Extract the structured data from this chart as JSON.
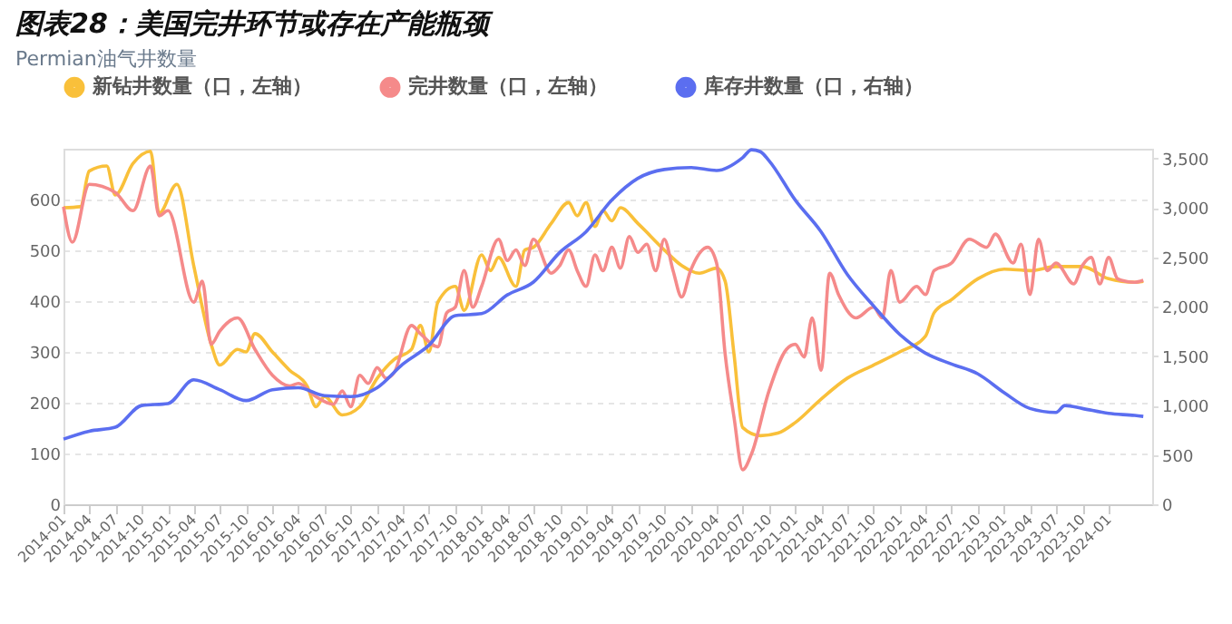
{
  "chart_data": {
    "type": "line",
    "title": "图表28：美国完井环节或存在产能瓶颈",
    "subtitle": "Permian油气井数量",
    "xlim": [
      "2014-01",
      "2024-06"
    ],
    "xticks": [
      "2014-01",
      "2014-04",
      "2014-07",
      "2014-10",
      "2015-01",
      "2015-04",
      "2015-07",
      "2015-10",
      "2016-01",
      "2016-04",
      "2016-07",
      "2016-10",
      "2017-01",
      "2017-04",
      "2017-07",
      "2017-10",
      "2018-01",
      "2018-04",
      "2018-07",
      "2018-10",
      "2019-01",
      "2019-04",
      "2019-07",
      "2019-10",
      "2020-01",
      "2020-04",
      "2020-07",
      "2020-10",
      "2021-01",
      "2021-04",
      "2021-07",
      "2021-10",
      "2022-01",
      "2022-04",
      "2022-07",
      "2022-10",
      "2023-01",
      "2023-04",
      "2023-07",
      "2023-10",
      "2024-01"
    ],
    "ylim": [
      0,
      700
    ],
    "yticks": [
      0,
      100,
      200,
      300,
      400,
      500,
      600
    ],
    "y2lim": [
      0,
      3600
    ],
    "y2ticks": [
      0,
      500,
      {
        "value": 1000,
        "label": "1,000"
      },
      {
        "value": 1500,
        "label": "1,500"
      },
      {
        "value": 2000,
        "label": "2,000"
      },
      {
        "value": 2500,
        "label": "2,500"
      },
      {
        "value": 3000,
        "label": "3,000"
      },
      {
        "value": 3500,
        "label": "3,500"
      }
    ],
    "grid": "y",
    "legend": "top left",
    "marker": "none",
    "line_style": "solid",
    "series": [
      {
        "name": "新钻井数量（口，左轴）",
        "color": "#f9c03a",
        "x": [
          "2014-01",
          "2014-03",
          "2014-04",
          "2014-06",
          "2014-07",
          "2014-09",
          "2014-11",
          "2014-12",
          "2015-02",
          "2015-04",
          "2015-06",
          "2015-07",
          "2015-09",
          "2015-10",
          "2015-11",
          "2016-01",
          "2016-03",
          "2016-05",
          "2016-06",
          "2016-07",
          "2016-09",
          "2016-11",
          "2017-01",
          "2017-03",
          "2017-05",
          "2017-06",
          "2017-07",
          "2017-08",
          "2017-10",
          "2017-11",
          "2018-01",
          "2018-02",
          "2018-03",
          "2018-05",
          "2018-06",
          "2018-07",
          "2018-09",
          "2018-11",
          "2018-12",
          "2019-01",
          "2019-02",
          "2019-03",
          "2019-04",
          "2019-05",
          "2019-07",
          "2019-10",
          "2019-12",
          "2020-02",
          "2020-04",
          "2020-05",
          "2020-06",
          "2020-07",
          "2020-09",
          "2020-11",
          "2021-01",
          "2021-04",
          "2021-07",
          "2021-10",
          "2022-01",
          "2022-04",
          "2022-05",
          "2022-07",
          "2022-10",
          "2023-01",
          "2023-04",
          "2023-07",
          "2023-10",
          "2024-01",
          "2024-04",
          "2024-05"
        ],
        "values": [
          584,
          586,
          656,
          666,
          609,
          671,
          695,
          573,
          630,
          470,
          315,
          274,
          305,
          300,
          336,
          300,
          264,
          233,
          192,
          212,
          176,
          192,
          248,
          285,
          305,
          352,
          300,
          398,
          429,
          382,
          491,
          460,
          486,
          429,
          501,
          506,
          553,
          594,
          568,
          594,
          547,
          578,
          558,
          584,
          553,
          501,
          470,
          455,
          465,
          439,
          295,
          151,
          135,
          140,
          161,
          207,
          248,
          274,
          300,
          331,
          377,
          403,
          444,
          463,
          460,
          468,
          468,
          444,
          437,
          439
        ]
      },
      {
        "name": "完井数量（口，左轴）",
        "color": "#f58a8a",
        "x": [
          "2014-01",
          "2014-02",
          "2014-04",
          "2014-07",
          "2014-09",
          "2014-11",
          "2014-12",
          "2015-01",
          "2015-04",
          "2015-05",
          "2015-06",
          "2015-07",
          "2015-09",
          "2015-11",
          "2016-01",
          "2016-03",
          "2016-04",
          "2016-06",
          "2016-08",
          "2016-09",
          "2016-10",
          "2016-11",
          "2016-12",
          "2017-01",
          "2017-02",
          "2017-03",
          "2017-05",
          "2017-06",
          "2017-08",
          "2017-09",
          "2017-10",
          "2017-11",
          "2017-12",
          "2018-01",
          "2018-03",
          "2018-04",
          "2018-05",
          "2018-06",
          "2018-07",
          "2018-09",
          "2018-10",
          "2018-11",
          "2018-12",
          "2019-01",
          "2019-02",
          "2019-03",
          "2019-04",
          "2019-05",
          "2019-06",
          "2019-07",
          "2019-08",
          "2019-09",
          "2019-10",
          "2019-11",
          "2019-12",
          "2020-01",
          "2020-03",
          "2020-04",
          "2020-05",
          "2020-06",
          "2020-07",
          "2020-08",
          "2020-10",
          "2020-12",
          "2021-01",
          "2021-02",
          "2021-03",
          "2021-04",
          "2021-05",
          "2021-06",
          "2021-08",
          "2021-10",
          "2021-11",
          "2021-12",
          "2022-01",
          "2022-03",
          "2022-04",
          "2022-05",
          "2022-07",
          "2022-09",
          "2022-11",
          "2022-12",
          "2023-02",
          "2023-03",
          "2023-04",
          "2023-05",
          "2023-06",
          "2023-07",
          "2023-09",
          "2023-10",
          "2023-11",
          "2023-12",
          "2024-01",
          "2024-02",
          "2024-03",
          "2024-04",
          "2024-05"
        ],
        "values": [
          586,
          516,
          630,
          614,
          578,
          666,
          568,
          578,
          398,
          439,
          315,
          341,
          367,
          305,
          254,
          233,
          238,
          212,
          197,
          223,
          192,
          254,
          238,
          269,
          248,
          259,
          352,
          336,
          310,
          377,
          388,
          460,
          388,
          429,
          522,
          480,
          501,
          470,
          522,
          455,
          470,
          501,
          460,
          429,
          491,
          460,
          506,
          465,
          527,
          496,
          512,
          460,
          522,
          460,
          408,
          460,
          506,
          475,
          295,
          171,
          68,
          99,
          223,
          305,
          315,
          290,
          367,
          264,
          455,
          413,
          367,
          388,
          367,
          460,
          398,
          429,
          413,
          460,
          475,
          522,
          506,
          532,
          475,
          512,
          413,
          522,
          460,
          475,
          434,
          470,
          486,
          434,
          486,
          444,
          439,
          437,
          441
        ]
      },
      {
        "name": "库存井数量（口，右轴）",
        "color": "#5b6ef0",
        "axis": "y2",
        "x": [
          "2014-01",
          "2014-04",
          "2014-07",
          "2014-10",
          "2015-01",
          "2015-04",
          "2015-07",
          "2015-10",
          "2016-01",
          "2016-04",
          "2016-07",
          "2016-10",
          "2017-01",
          "2017-04",
          "2017-07",
          "2017-10",
          "2018-01",
          "2018-04",
          "2018-07",
          "2018-10",
          "2019-01",
          "2019-04",
          "2019-07",
          "2019-10",
          "2020-01",
          "2020-04",
          "2020-07",
          "2020-08",
          "2020-09",
          "2020-10",
          "2021-01",
          "2021-04",
          "2021-07",
          "2021-10",
          "2022-01",
          "2022-04",
          "2022-07",
          "2022-10",
          "2023-01",
          "2023-04",
          "2023-07",
          "2023-08",
          "2023-10",
          "2024-01",
          "2024-04",
          "2024-05"
        ],
        "values": [
          660,
          740,
          780,
          1000,
          1020,
          1260,
          1160,
          1050,
          1160,
          1180,
          1100,
          1090,
          1180,
          1420,
          1610,
          1910,
          1930,
          2120,
          2250,
          2550,
          2760,
          3080,
          3300,
          3390,
          3410,
          3380,
          3510,
          3590,
          3570,
          3480,
          3080,
          2760,
          2330,
          2010,
          1720,
          1530,
          1420,
          1320,
          1130,
          970,
          930,
          1000,
          970,
          920,
          900,
          890
        ]
      }
    ]
  }
}
